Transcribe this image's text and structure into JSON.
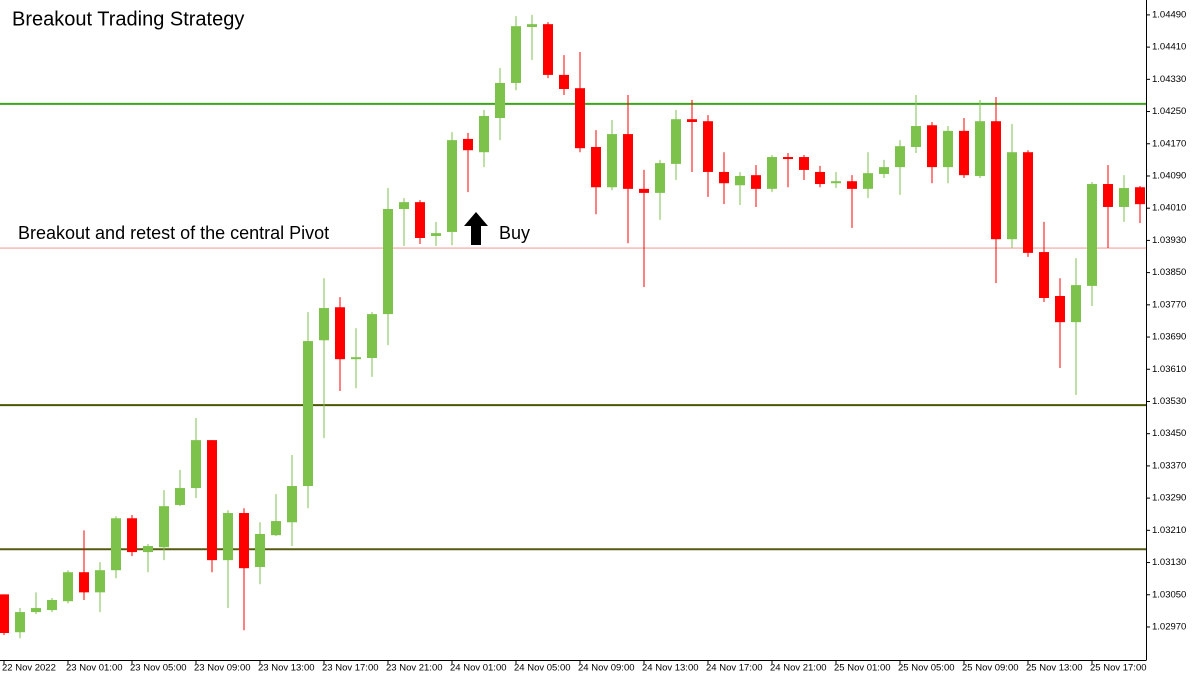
{
  "chart_data": {
    "type": "candlestick",
    "title": "Breakout Trading Strategy",
    "categories": [
      "22 Nov 2022",
      null,
      null,
      null,
      "23 Nov 01:00",
      null,
      null,
      null,
      "23 Nov 05:00",
      null,
      null,
      null,
      "23 Nov 09:00",
      null,
      null,
      null,
      "23 Nov 13:00",
      null,
      null,
      null,
      "23 Nov 17:00",
      null,
      null,
      null,
      "23 Nov 21:00",
      null,
      null,
      null,
      "24 Nov 01:00",
      null,
      null,
      null,
      "24 Nov 05:00",
      null,
      null,
      null,
      "24 Nov 09:00",
      null,
      null,
      null,
      "24 Nov 13:00",
      null,
      null,
      null,
      "24 Nov 17:00",
      null,
      null,
      null,
      "24 Nov 21:00",
      null,
      null,
      null,
      "25 Nov 01:00",
      null,
      null,
      null,
      "25 Nov 05:00",
      null,
      null,
      null,
      "25 Nov 09:00",
      null,
      null,
      null,
      "25 Nov 13:00",
      null,
      null,
      null,
      "25 Nov 17:00",
      null,
      null,
      null
    ],
    "open": [
      1.03051,
      1.02957,
      1.03007,
      1.03012,
      1.03034,
      1.03106,
      1.03056,
      1.03111,
      1.0324,
      1.03156,
      1.03168,
      1.03273,
      1.03315,
      1.03434,
      1.03136,
      1.03253,
      1.03119,
      1.03198,
      1.0323,
      1.0332,
      1.03682,
      1.03764,
      1.03635,
      1.03638,
      1.03747,
      1.04008,
      1.04025,
      1.03941,
      1.03951,
      1.04182,
      1.04149,
      1.04234,
      1.04321,
      1.0446,
      1.04467,
      1.04341,
      1.04308,
      1.04162,
      1.04062,
      1.04194,
      1.04058,
      1.04048,
      1.0412,
      1.04231,
      1.04226,
      1.041,
      1.04067,
      1.04092,
      1.04058,
      1.04137,
      1.04137,
      1.041,
      1.04072,
      1.04077,
      1.04058,
      1.04095,
      1.04112,
      1.04162,
      1.04216,
      1.04112,
      1.04202,
      1.0409,
      1.04226,
      1.03933,
      1.04149,
      1.03901,
      1.03792,
      1.03727,
      1.03817,
      1.0407,
      1.04013,
      1.04062
    ],
    "high": [
      1.03051,
      1.03017,
      1.03056,
      1.03042,
      1.03111,
      1.0321,
      1.03131,
      1.03245,
      1.03248,
      1.03176,
      1.0331,
      1.0336,
      1.03489,
      1.03434,
      1.0326,
      1.03265,
      1.0323,
      1.033,
      1.03397,
      1.03752,
      1.03836,
      1.03789,
      1.03712,
      1.03752,
      1.0406,
      1.04035,
      1.0403,
      1.03976,
      1.04199,
      1.04197,
      1.04254,
      1.04358,
      1.04487,
      1.0449,
      1.04472,
      1.0439,
      1.04398,
      1.04204,
      1.04229,
      1.04291,
      1.04105,
      1.0413,
      1.04254,
      1.04279,
      1.04241,
      1.04149,
      1.041,
      1.04117,
      1.04142,
      1.04147,
      1.04142,
      1.04115,
      1.041,
      1.04092,
      1.04149,
      1.0413,
      1.04179,
      1.04291,
      1.04224,
      1.04214,
      1.04234,
      1.04279,
      1.04286,
      1.04219,
      1.04154,
      1.03976,
      1.03836,
      1.03886,
      1.04075,
      1.04117,
      1.04092,
      1.04065
    ],
    "low": [
      1.0295,
      1.02942,
      1.03002,
      1.03007,
      1.03029,
      1.03037,
      1.03007,
      1.03091,
      1.03146,
      1.03106,
      1.03136,
      1.0327,
      1.0329,
      1.03106,
      1.03017,
      1.02962,
      1.03076,
      1.03196,
      1.03171,
      1.03265,
      1.03439,
      1.03556,
      1.03563,
      1.03591,
      1.0367,
      1.03916,
      1.03921,
      1.03916,
      1.03918,
      1.0405,
      1.04112,
      1.04179,
      1.04303,
      1.04378,
      1.04333,
      1.04291,
      1.04149,
      1.03995,
      1.04055,
      1.03923,
      1.03814,
      1.03981,
      1.0408,
      1.041,
      1.04038,
      1.0402,
      1.04018,
      1.04013,
      1.0405,
      1.04062,
      1.0408,
      1.04062,
      1.0406,
      1.03961,
      1.04035,
      1.04085,
      1.04043,
      1.04147,
      1.04072,
      1.04072,
      1.04085,
      1.04085,
      1.03824,
      1.03911,
      1.03889,
      1.03777,
      1.03613,
      1.03546,
      1.03767,
      1.03911,
      1.03976,
      1.03973
    ],
    "close": [
      1.02955,
      1.03007,
      1.03017,
      1.03037,
      1.03106,
      1.03056,
      1.03111,
      1.0324,
      1.03156,
      1.03171,
      1.0327,
      1.03315,
      1.03434,
      1.03136,
      1.03253,
      1.03116,
      1.03201,
      1.03233,
      1.0332,
      1.0368,
      1.03762,
      1.03635,
      1.0364,
      1.03747,
      1.04008,
      1.04025,
      1.03936,
      1.03948,
      1.04179,
      1.04154,
      1.04239,
      1.04321,
      1.04462,
      1.04467,
      1.04341,
      1.04306,
      1.04159,
      1.04062,
      1.04194,
      1.04058,
      1.04048,
      1.04122,
      1.04231,
      1.04224,
      1.041,
      1.04072,
      1.0409,
      1.04058,
      1.04137,
      1.04132,
      1.04105,
      1.0407,
      1.04077,
      1.04058,
      1.04097,
      1.04112,
      1.04164,
      1.04214,
      1.04112,
      1.04202,
      1.04092,
      1.04226,
      1.03933,
      1.04149,
      1.03899,
      1.03787,
      1.03727,
      1.03819,
      1.0407,
      1.04013,
      1.0406,
      1.0402
    ],
    "up_color": "#7dc24b",
    "down_color": "#ff0000",
    "hlines": [
      {
        "value": 1.04269,
        "color": "#3aa61a"
      },
      {
        "value": 1.03911,
        "color": "#f2a49c"
      },
      {
        "value": 1.03521,
        "color": "#4b5600"
      },
      {
        "value": 1.03163,
        "color": "#555a10"
      }
    ],
    "annotations": [
      {
        "text": "Breakout and retest of the central Pivot"
      },
      {
        "text": "Buy"
      }
    ],
    "ylim": [
      1.02888,
      1.04527
    ],
    "yticks": [
      {
        "value": 1.0449,
        "label": "1.04490"
      },
      {
        "value": 1.0441,
        "label": "1.04410"
      },
      {
        "value": 1.0433,
        "label": "1.04330"
      },
      {
        "value": 1.0425,
        "label": "1.04250"
      },
      {
        "value": 1.0417,
        "label": "1.04170"
      },
      {
        "value": 1.0409,
        "label": "1.04090"
      },
      {
        "value": 1.0401,
        "label": "1.04010"
      },
      {
        "value": 1.0393,
        "label": "1.03930"
      },
      {
        "value": 1.0385,
        "label": "1.03850"
      },
      {
        "value": 1.0377,
        "label": "1.03770"
      },
      {
        "value": 1.0369,
        "label": "1.03690"
      },
      {
        "value": 1.0361,
        "label": "1.03610"
      },
      {
        "value": 1.0353,
        "label": "1.03530"
      },
      {
        "value": 1.0345,
        "label": "1.03450"
      },
      {
        "value": 1.0337,
        "label": "1.03370"
      },
      {
        "value": 1.0329,
        "label": "1.03290"
      },
      {
        "value": 1.0321,
        "label": "1.03210"
      },
      {
        "value": 1.0313,
        "label": "1.03130"
      },
      {
        "value": 1.0305,
        "label": "1.03050"
      },
      {
        "value": 1.0297,
        "label": "1.02970"
      }
    ]
  }
}
